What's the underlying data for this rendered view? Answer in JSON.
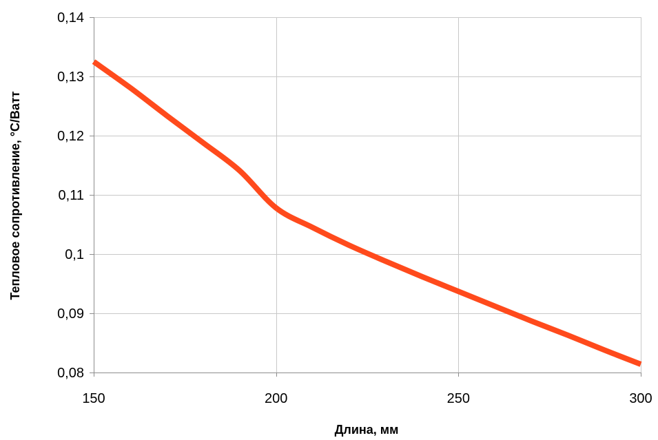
{
  "chart_data": {
    "type": "line",
    "title": "",
    "xlabel": "Длина, мм",
    "ylabel": "Тепловое сопротивление, °C/Ватт",
    "xlim": [
      150,
      300
    ],
    "ylim": [
      0.08,
      0.14
    ],
    "x_ticks": [
      150,
      200,
      250,
      300
    ],
    "x_tick_labels": [
      "150",
      "200",
      "250",
      "300"
    ],
    "y_ticks": [
      0.08,
      0.09,
      0.1,
      0.11,
      0.12,
      0.13,
      0.14
    ],
    "y_tick_labels": [
      "0,08",
      "0,09",
      "0,1",
      "0,11",
      "0,12",
      "0,13",
      "0,14"
    ],
    "grid": true,
    "legend": false,
    "series": [
      {
        "color": "#FF4A1C",
        "x": [
          150,
          160,
          170,
          180,
          190,
          200,
          210,
          220,
          230,
          240,
          250,
          260,
          270,
          280,
          290,
          300
        ],
        "y": [
          0.1325,
          0.1281,
          0.1234,
          0.1188,
          0.1141,
          0.1078,
          0.1045,
          0.1015,
          0.0988,
          0.0962,
          0.0937,
          0.0912,
          0.0887,
          0.0863,
          0.0838,
          0.0814
        ]
      }
    ]
  }
}
